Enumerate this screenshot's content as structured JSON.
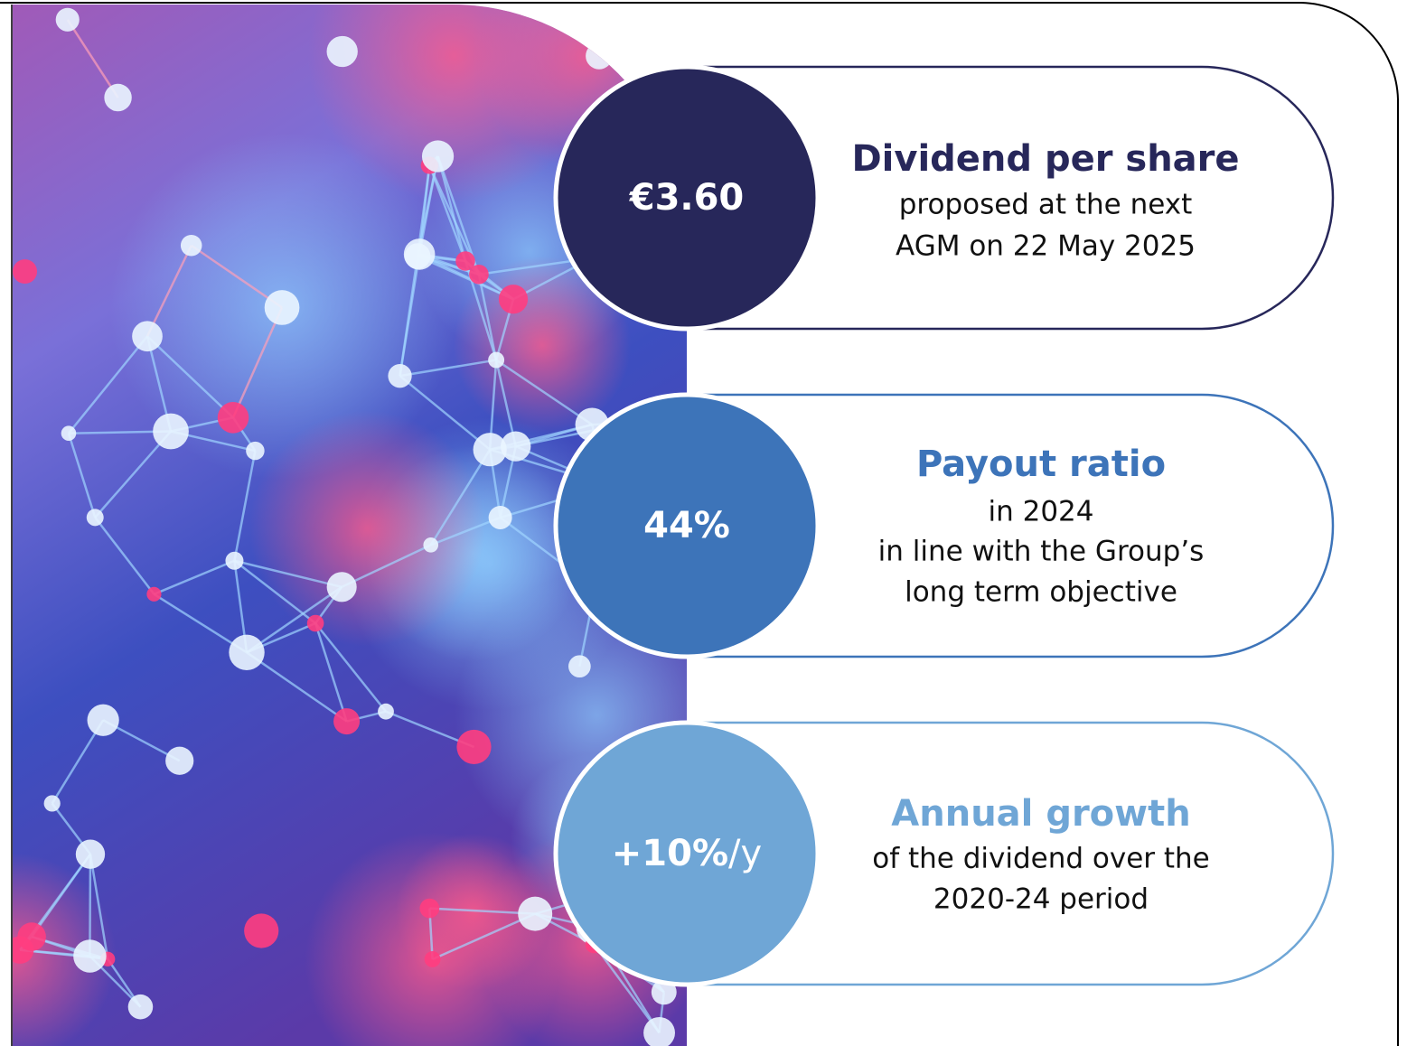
{
  "cards": [
    {
      "value": "€3.60",
      "title": "Dividend per share",
      "lines": [
        "proposed at the next",
        "AGM on 22 May 2025"
      ]
    },
    {
      "value": "44%",
      "title": "Payout ratio",
      "lines": [
        "in 2024",
        "in line with the Group’s",
        "long term objective"
      ]
    },
    {
      "value": "+10%",
      "value_suffix": "/y",
      "title": "Annual growth",
      "lines": [
        "of the dividend over the",
        "2020-24 period"
      ]
    }
  ]
}
